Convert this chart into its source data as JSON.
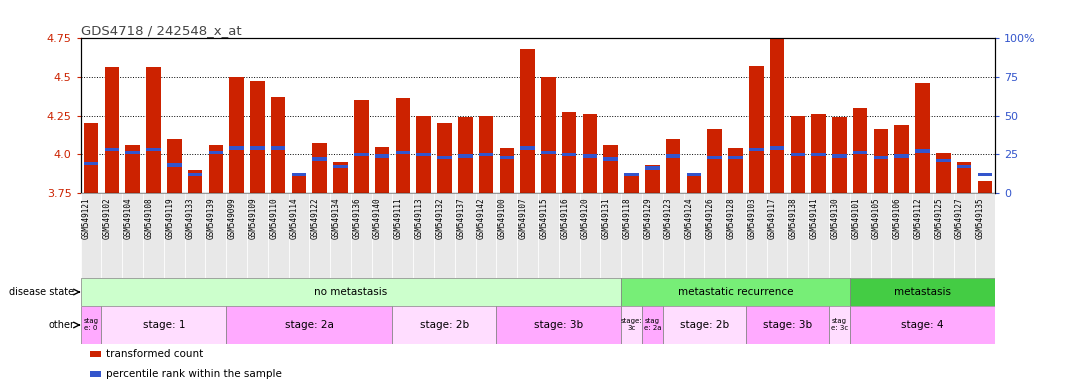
{
  "title": "GDS4718 / 242548_x_at",
  "samples": [
    "GSM549121",
    "GSM549102",
    "GSM549104",
    "GSM549108",
    "GSM549119",
    "GSM549133",
    "GSM549139",
    "GSM549099",
    "GSM549109",
    "GSM549110",
    "GSM549114",
    "GSM549122",
    "GSM549134",
    "GSM549136",
    "GSM549140",
    "GSM549111",
    "GSM549113",
    "GSM549132",
    "GSM549137",
    "GSM549142",
    "GSM549100",
    "GSM549107",
    "GSM549115",
    "GSM549116",
    "GSM549120",
    "GSM549131",
    "GSM549118",
    "GSM549129",
    "GSM549123",
    "GSM549124",
    "GSM549126",
    "GSM549128",
    "GSM549103",
    "GSM549117",
    "GSM549138",
    "GSM549141",
    "GSM549130",
    "GSM549101",
    "GSM549105",
    "GSM549106",
    "GSM549112",
    "GSM549125",
    "GSM549127",
    "GSM549135"
  ],
  "transformed_count": [
    4.2,
    4.56,
    4.06,
    4.56,
    4.1,
    3.9,
    4.06,
    4.5,
    4.47,
    4.37,
    3.88,
    4.07,
    3.95,
    4.35,
    4.05,
    4.36,
    4.25,
    4.2,
    4.24,
    4.25,
    4.04,
    4.68,
    4.5,
    4.27,
    4.26,
    4.06,
    3.87,
    3.93,
    4.1,
    3.88,
    4.16,
    4.04,
    4.57,
    4.75,
    4.25,
    4.26,
    4.24,
    4.3,
    4.16,
    4.19,
    4.46,
    4.01,
    3.95,
    3.83
  ],
  "percentile_rank": [
    3.94,
    4.03,
    4.01,
    4.03,
    3.93,
    3.87,
    4.01,
    4.04,
    4.04,
    4.04,
    3.87,
    3.97,
    3.92,
    4.0,
    3.99,
    4.01,
    4.0,
    3.98,
    3.99,
    4.0,
    3.98,
    4.04,
    4.01,
    4.0,
    3.99,
    3.97,
    3.87,
    3.91,
    3.99,
    3.87,
    3.98,
    3.98,
    4.03,
    4.04,
    4.0,
    4.0,
    3.99,
    4.01,
    3.98,
    3.99,
    4.02,
    3.96,
    3.92,
    3.87
  ],
  "ymin": 3.75,
  "ymax": 4.75,
  "yticks": [
    3.75,
    4.0,
    4.25,
    4.5,
    4.75
  ],
  "right_yticks": [
    0,
    25,
    50,
    75,
    100
  ],
  "right_ytick_labels": [
    "0",
    "25",
    "50",
    "75",
    "100%"
  ],
  "bar_color": "#cc2200",
  "percentile_color": "#3355cc",
  "title_color": "#444444",
  "left_tick_color": "#cc2200",
  "right_tick_color": "#3355cc",
  "grid_color": "#000000",
  "disease_state_groups": [
    {
      "label": "no metastasis",
      "start": 0,
      "end": 26,
      "color": "#ccffcc"
    },
    {
      "label": "metastatic recurrence",
      "start": 26,
      "end": 37,
      "color": "#77ee77"
    },
    {
      "label": "metastasis",
      "start": 37,
      "end": 44,
      "color": "#44cc44"
    }
  ],
  "other_groups": [
    {
      "label": "stag\ne: 0",
      "start": 0,
      "end": 1,
      "color": "#ffaaff"
    },
    {
      "label": "stage: 1",
      "start": 1,
      "end": 7,
      "color": "#ffddff"
    },
    {
      "label": "stage: 2a",
      "start": 7,
      "end": 15,
      "color": "#ffaaff"
    },
    {
      "label": "stage: 2b",
      "start": 15,
      "end": 20,
      "color": "#ffddff"
    },
    {
      "label": "stage: 3b",
      "start": 20,
      "end": 26,
      "color": "#ffaaff"
    },
    {
      "label": "stage:\n3c",
      "start": 26,
      "end": 27,
      "color": "#ffddff"
    },
    {
      "label": "stag\ne: 2a",
      "start": 27,
      "end": 28,
      "color": "#ffaaff"
    },
    {
      "label": "stage: 2b",
      "start": 28,
      "end": 32,
      "color": "#ffddff"
    },
    {
      "label": "stage: 3b",
      "start": 32,
      "end": 36,
      "color": "#ffaaff"
    },
    {
      "label": "stag\ne: 3c",
      "start": 36,
      "end": 37,
      "color": "#ffddff"
    },
    {
      "label": "stage: 4",
      "start": 37,
      "end": 44,
      "color": "#ffaaff"
    }
  ],
  "legend_items": [
    {
      "label": "transformed count",
      "color": "#cc2200"
    },
    {
      "label": "percentile rank within the sample",
      "color": "#3355cc"
    }
  ],
  "xticklabel_bg": "#e8e8e8"
}
